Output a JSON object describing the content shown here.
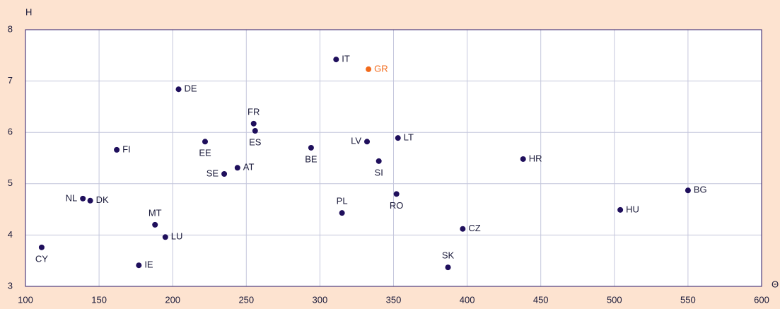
{
  "chart_data": {
    "type": "scatter",
    "x_label": "Θ",
    "y_label": "H",
    "labels": [
      "CY",
      "NL",
      "DK",
      "FI",
      "MT",
      "LU",
      "IE",
      "DE",
      "EE",
      "SE",
      "AT",
      "FR",
      "ES",
      "BE",
      "IT",
      "GR",
      "LV",
      "PL",
      "SI",
      "LT",
      "RO",
      "CZ",
      "SK",
      "HR",
      "HU",
      "BG"
    ],
    "x": [
      111,
      139,
      144,
      162,
      188,
      195,
      177,
      204,
      222,
      235,
      244,
      255,
      256,
      294,
      311,
      333,
      332,
      315,
      340,
      353,
      352,
      397,
      387,
      438,
      504,
      550
    ],
    "values": [
      3.76,
      4.71,
      4.67,
      5.66,
      4.2,
      3.96,
      3.41,
      6.84,
      5.82,
      5.19,
      5.31,
      6.17,
      6.03,
      5.7,
      7.42,
      7.23,
      5.82,
      4.43,
      5.44,
      5.89,
      4.8,
      4.12,
      3.37,
      5.48,
      4.49,
      4.87
    ],
    "colors": [
      "#1f0f5c",
      "#1f0f5c",
      "#1f0f5c",
      "#1f0f5c",
      "#1f0f5c",
      "#1f0f5c",
      "#1f0f5c",
      "#1f0f5c",
      "#1f0f5c",
      "#1f0f5c",
      "#1f0f5c",
      "#1f0f5c",
      "#1f0f5c",
      "#1f0f5c",
      "#1f0f5c",
      "#f26a1b",
      "#1f0f5c",
      "#1f0f5c",
      "#1f0f5c",
      "#1f0f5c",
      "#1f0f5c",
      "#1f0f5c",
      "#1f0f5c",
      "#1f0f5c",
      "#1f0f5c",
      "#1f0f5c"
    ],
    "xlim": [
      100,
      600
    ],
    "xticks": [
      100,
      150,
      200,
      250,
      300,
      350,
      400,
      450,
      500,
      550,
      600
    ],
    "ylim": [
      3,
      8
    ],
    "yticks": [
      3,
      4,
      5,
      6,
      7,
      8
    ],
    "grid": true
  }
}
